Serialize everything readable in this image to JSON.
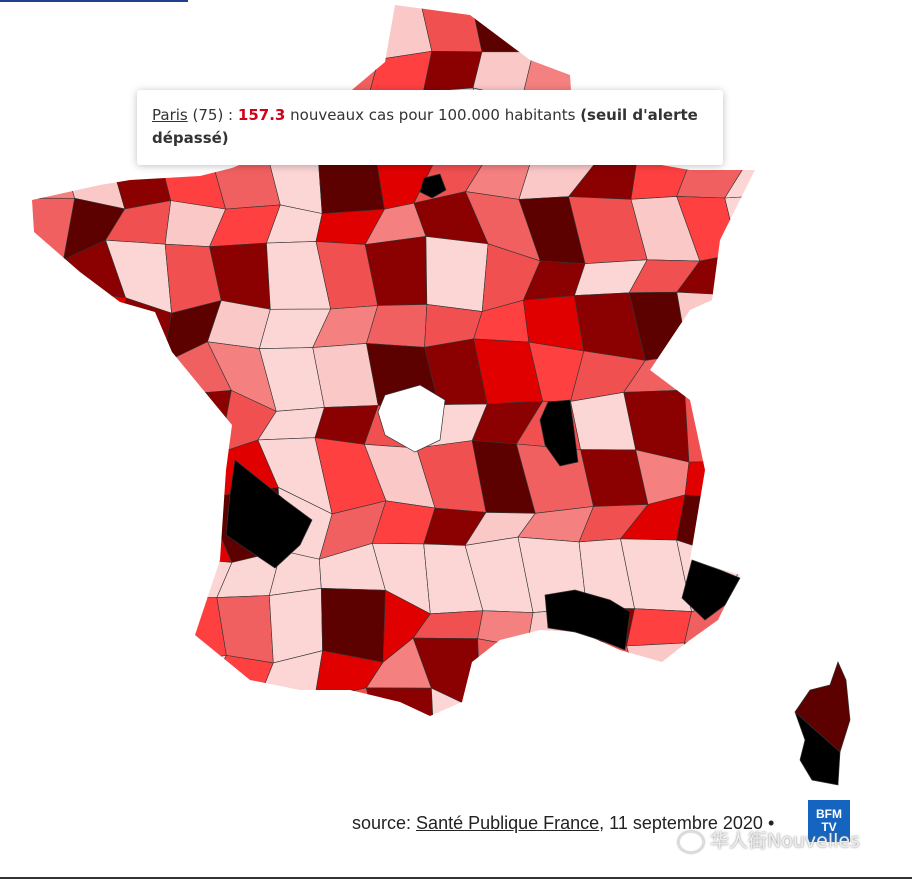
{
  "tooltip": {
    "place": "Paris",
    "code": "(75) :",
    "value": "157.3",
    "text": "nouveaux cas pour 100.000 habitants",
    "status": "(seuil d'alerte dépassé)"
  },
  "source": {
    "prefix": "source:",
    "link": "Santé Publique France",
    "date": ", 11 septembre 2020 •"
  },
  "logo": {
    "line1": "BFM",
    "line2": "TV"
  },
  "watermark": "华人街Nouvelles"
}
